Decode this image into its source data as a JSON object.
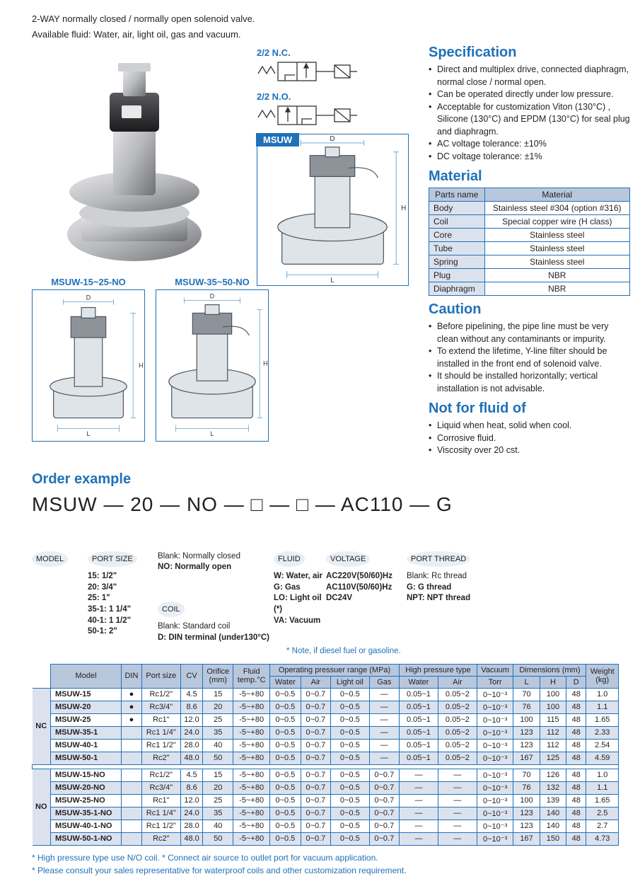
{
  "intro": [
    "2-WAY normally closed / normally open solenoid valve.",
    "Available fluid: Water, air, light oil, gas and vacuum."
  ],
  "symbols": {
    "nc": "2/2 N.C.",
    "no": "2/2 N.O.",
    "msuw": "MSUW"
  },
  "diagrams": {
    "no_small": "MSUW-15~25-NO",
    "no_large": "MSUW-35~50-NO",
    "dims": [
      "D",
      "H",
      "L"
    ]
  },
  "spec": {
    "heading": "Specification",
    "items": [
      "Direct and multiplex drive, connected diaphragm, normal close / normal open.",
      "Can be operated directly under low pressure.",
      "Acceptable for customization Viton (130°C) , Silicone (130°C) and EPDM (130°C) for seal plug and diaphragm.",
      "AC voltage tolerance: ±10%",
      "DC voltage tolerance: ±1%"
    ]
  },
  "material": {
    "heading": "Material",
    "head": [
      "Parts name",
      "Material"
    ],
    "rows": [
      [
        "Body",
        "Stainless steel #304 (option #316)"
      ],
      [
        "Coil",
        "Special copper wire (H class)"
      ],
      [
        "Core",
        "Stainless steel"
      ],
      [
        "Tube",
        "Stainless steel"
      ],
      [
        "Spring",
        "Stainless steel"
      ],
      [
        "Plug",
        "NBR"
      ],
      [
        "Diaphragm",
        "NBR"
      ]
    ]
  },
  "caution": {
    "heading": "Caution",
    "items": [
      "Before pipelining, the pipe line must be very clean without any contaminants or impurity.",
      "To extend the lifetime, Y-line filter should be installed in the front end of solenoid valve.",
      "It should be installed horizontally; vertical installation is not advisable."
    ]
  },
  "notfor": {
    "heading": "Not for fluid of",
    "items": [
      "Liquid when heat, solid when cool.",
      "Corrosive fluid.",
      "Viscosity over 20 cst."
    ]
  },
  "order": {
    "heading": "Order example",
    "code_parts": [
      "MSUW",
      "—",
      "20",
      "—",
      "NO",
      "—",
      "□",
      "—",
      "□",
      "—",
      "AC110",
      "—",
      "G"
    ],
    "labels": {
      "model": "MODEL",
      "port": "PORT SIZE",
      "port_opts": [
        "15: 1/2\"",
        "20: 3/4\"",
        "25: 1\"",
        "35-1: 1 1/4\"",
        "40-1: 1 1/2\"",
        "50-1: 2\""
      ],
      "nc_no": [
        "Blank: Normally closed",
        "NO: Normally open"
      ],
      "coil": "COIL",
      "coil_opts": [
        "Blank: Standard coil",
        "D: DIN terminal (under130°C)"
      ],
      "fluid": "FLUID",
      "fluid_opts": [
        "W: Water, air",
        "G: Gas",
        "LO: Light oil (*)",
        "VA: Vacuum"
      ],
      "voltage": "VOLTAGE",
      "voltage_opts": [
        "AC220V(50/60)Hz",
        "AC110V(50/60)Hz",
        "DC24V"
      ],
      "thread": "PORT THREAD",
      "thread_opts": [
        "Blank: Rc thread",
        "G: G thread",
        "NPT: NPT thread"
      ],
      "fluid_note": "* Note, if diesel fuel or gasoline."
    }
  },
  "maintable": {
    "head_top": [
      "Model",
      "DIN",
      "Port size",
      "CV",
      "Orifice\n(mm)",
      "Fluid\ntemp.°C",
      "Operating pressuer range (MPa)",
      "High pressure type",
      "Vacuum",
      "Dimensions (mm)",
      "Weight\n(kg)"
    ],
    "head_sub_op": [
      "Water",
      "Air",
      "Light oil",
      "Gas"
    ],
    "head_sub_hp": [
      "Water",
      "Air"
    ],
    "head_sub_vac": [
      "Torr"
    ],
    "head_sub_dim": [
      "L",
      "H",
      "D"
    ],
    "group_nc": "NC",
    "group_no": "NO",
    "rows_nc": [
      [
        "MSUW-15",
        "●",
        "Rc1/2\"",
        "4.5",
        "15",
        "-5~+80",
        "0~0.5",
        "0~0.7",
        "0~0.5",
        "—",
        "0.05~1",
        "0.05~2",
        "0~10⁻³",
        "70",
        "100",
        "48",
        "1.0"
      ],
      [
        "MSUW-20",
        "●",
        "Rc3/4\"",
        "8.6",
        "20",
        "-5~+80",
        "0~0.5",
        "0~0.7",
        "0~0.5",
        "—",
        "0.05~1",
        "0.05~2",
        "0~10⁻³",
        "76",
        "100",
        "48",
        "1.1"
      ],
      [
        "MSUW-25",
        "●",
        "Rc1\"",
        "12.0",
        "25",
        "-5~+80",
        "0~0.5",
        "0~0.7",
        "0~0.5",
        "—",
        "0.05~1",
        "0.05~2",
        "0~10⁻³",
        "100",
        "115",
        "48",
        "1.65"
      ],
      [
        "MSUW-35-1",
        "",
        "Rc1 1/4\"",
        "24.0",
        "35",
        "-5~+80",
        "0~0.5",
        "0~0.7",
        "0~0.5",
        "—",
        "0.05~1",
        "0.05~2",
        "0~10⁻³",
        "123",
        "112",
        "48",
        "2.33"
      ],
      [
        "MSUW-40-1",
        "",
        "Rc1 1/2\"",
        "28.0",
        "40",
        "-5~+80",
        "0~0.5",
        "0~0.7",
        "0~0.5",
        "—",
        "0.05~1",
        "0.05~2",
        "0~10⁻³",
        "123",
        "112",
        "48",
        "2.54"
      ],
      [
        "MSUW-50-1",
        "",
        "Rc2\"",
        "48.0",
        "50",
        "-5~+80",
        "0~0.5",
        "0~0.7",
        "0~0.5",
        "—",
        "0.05~1",
        "0.05~2",
        "0~10⁻³",
        "167",
        "125",
        "48",
        "4.59"
      ]
    ],
    "rows_no": [
      [
        "MSUW-15-NO",
        "",
        "Rc1/2\"",
        "4.5",
        "15",
        "-5~+80",
        "0~0.5",
        "0~0.7",
        "0~0.5",
        "0~0.7",
        "—",
        "—",
        "0~10⁻³",
        "70",
        "126",
        "48",
        "1.0"
      ],
      [
        "MSUW-20-NO",
        "",
        "Rc3/4\"",
        "8.6",
        "20",
        "-5~+80",
        "0~0.5",
        "0~0.7",
        "0~0.5",
        "0~0.7",
        "—",
        "—",
        "0~10⁻³",
        "76",
        "132",
        "48",
        "1.1"
      ],
      [
        "MSUW-25-NO",
        "",
        "Rc1\"",
        "12.0",
        "25",
        "-5~+80",
        "0~0.5",
        "0~0.7",
        "0~0.5",
        "0~0.7",
        "—",
        "—",
        "0~10⁻³",
        "100",
        "139",
        "48",
        "1.65"
      ],
      [
        "MSUW-35-1-NO",
        "",
        "Rc1 1/4\"",
        "24.0",
        "35",
        "-5~+80",
        "0~0.5",
        "0~0.7",
        "0~0.5",
        "0~0.7",
        "—",
        "—",
        "0~10⁻³",
        "123",
        "140",
        "48",
        "2.5"
      ],
      [
        "MSUW-40-1-NO",
        "",
        "Rc1 1/2\"",
        "28.0",
        "40",
        "-5~+80",
        "0~0.5",
        "0~0.7",
        "0~0.5",
        "0~0.7",
        "—",
        "—",
        "0~10⁻³",
        "123",
        "140",
        "48",
        "2.7"
      ],
      [
        "MSUW-50-1-NO",
        "",
        "Rc2\"",
        "48.0",
        "50",
        "-5~+80",
        "0~0.5",
        "0~0.7",
        "0~0.5",
        "0~0.7",
        "—",
        "—",
        "0~10⁻³",
        "167",
        "150",
        "48",
        "4.73"
      ]
    ]
  },
  "footnotes": [
    "* High pressure type use N/O coil.      * Connect air source to outlet port for vacuum application.",
    "* Please consult your sales representative for waterproof coils and other customization requirement."
  ],
  "colors": {
    "brand": "#1f71b8",
    "head_bg": "#b9c7dd",
    "alt_bg": "#dbe2ee",
    "pill_bg": "#e8eef5",
    "text": "#231f20"
  }
}
